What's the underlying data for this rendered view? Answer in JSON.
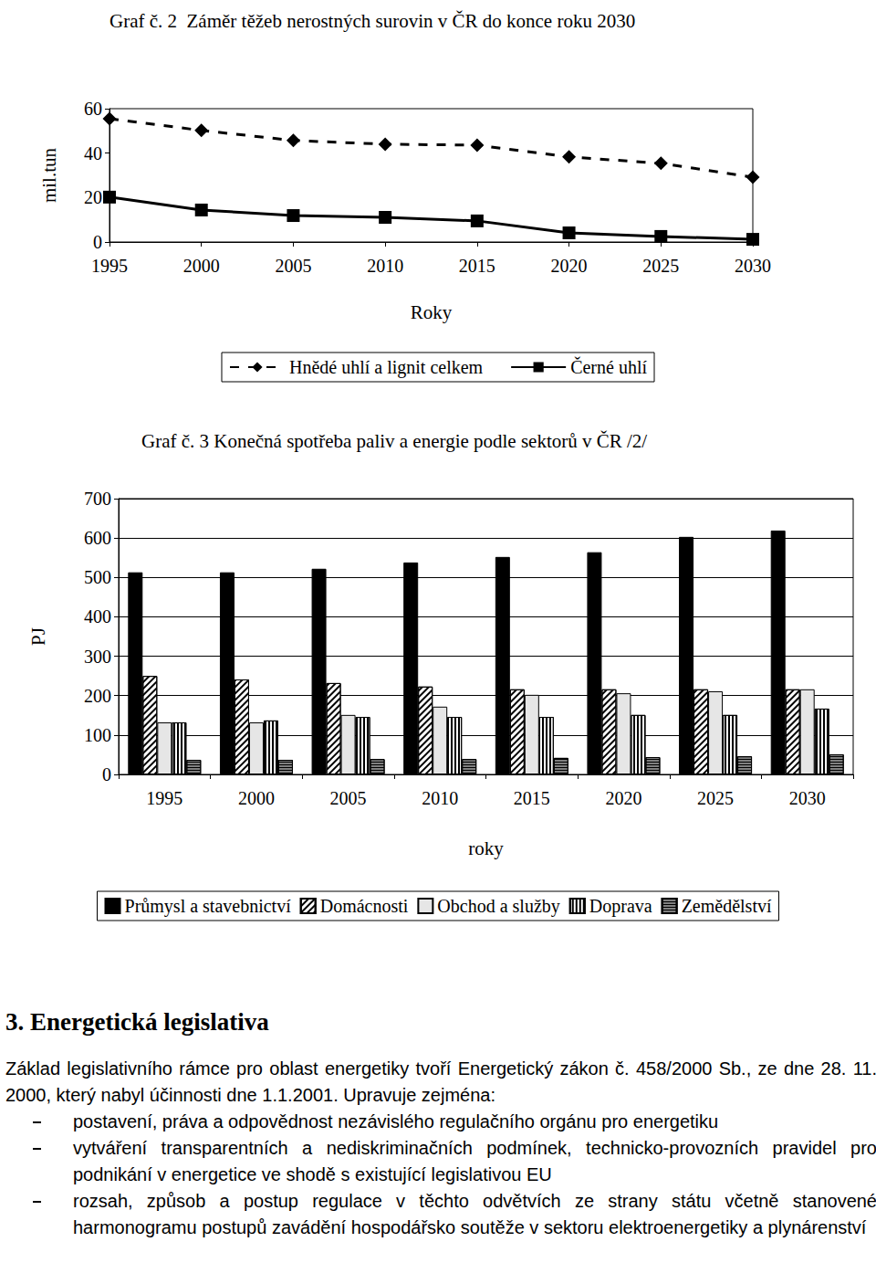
{
  "chart_data": [
    {
      "type": "line",
      "title": "Graf č. 2  Záměr těžeb nerostných surovin v ČR do konce roku 2030",
      "x_label": "Roky",
      "y_label": "mil.tun",
      "categories": [
        "1995",
        "2000",
        "2005",
        "2010",
        "2015",
        "2020",
        "2025",
        "2030"
      ],
      "series": [
        {
          "name": "Hnědé uhlí a lignit celkem",
          "color": "#000000",
          "marker": "diamond",
          "line_style": "dashed",
          "values": [
            55.5,
            50.2,
            45.7,
            44.0,
            43.6,
            38.3,
            35.4,
            29.2
          ]
        },
        {
          "name": "Černé uhlí",
          "color": "#000000",
          "marker": "square",
          "line_style": "solid",
          "values": [
            20.2,
            14.4,
            11.9,
            11.1,
            9.5,
            4.1,
            2.5,
            1.2
          ]
        }
      ],
      "ylim": [
        0,
        60
      ],
      "yticks": [
        0,
        20,
        40,
        60
      ],
      "grid": false,
      "legend": "bottom"
    },
    {
      "type": "bar",
      "title": "Graf č. 3 Konečná spotřeba paliv a energie podle sektorů v ČR /2/",
      "x_label": "roky",
      "y_label": "PJ",
      "categories": [
        "1995",
        "2000",
        "2005",
        "2010",
        "2015",
        "2020",
        "2025",
        "2030"
      ],
      "series": [
        {
          "name": "Průmysl a stavebnictví",
          "color": "#000000",
          "values": [
            513,
            513,
            522,
            538,
            552,
            564,
            603,
            619
          ]
        },
        {
          "name": "Domácnosti",
          "color": "#ffffff",
          "values": [
            250,
            241,
            232,
            223,
            216,
            216,
            216,
            216
          ]
        },
        {
          "name": "Obchod a služby",
          "color": "#e6e6e6",
          "values": [
            132,
            132,
            151,
            172,
            202,
            206,
            211,
            216
          ]
        },
        {
          "name": "Doprava",
          "color": "#ffffff",
          "values": [
            132,
            137,
            146,
            146,
            146,
            151,
            151,
            167
          ]
        },
        {
          "name": "Zemědělství",
          "color": "#808080",
          "values": [
            37,
            37,
            39,
            39,
            42,
            44,
            46,
            51
          ]
        }
      ],
      "ylim": [
        0,
        700
      ],
      "yticks": [
        0,
        100,
        200,
        300,
        400,
        500,
        600,
        700
      ],
      "grid": true,
      "legend": "bottom"
    }
  ],
  "text": {
    "heading": "3. Energetická legislativa",
    "paragraph": "Základ legislativního rámce pro oblast energetiky tvoří Energetický zákon č. 458/2000 Sb., ze dne 28. 11. 2000, který nabyl účinnosti dne 1.1.2001. Upravuje zejména:",
    "bullets": [
      "postavení, práva a odpovědnost nezávislého regulačního orgánu pro energetiku",
      "vytváření transparentních a nediskriminačních podmínek, technicko-provozních pravidel pro podnikání v energetice ve shodě s existující legislativou EU",
      "rozsah, způsob a postup regulace v těchto odvětvích ze strany státu včetně stanovené harmonogramu postupů zavádění hospodářsko soutěže v sektoru elektroenergetiky a plynárenství"
    ]
  }
}
